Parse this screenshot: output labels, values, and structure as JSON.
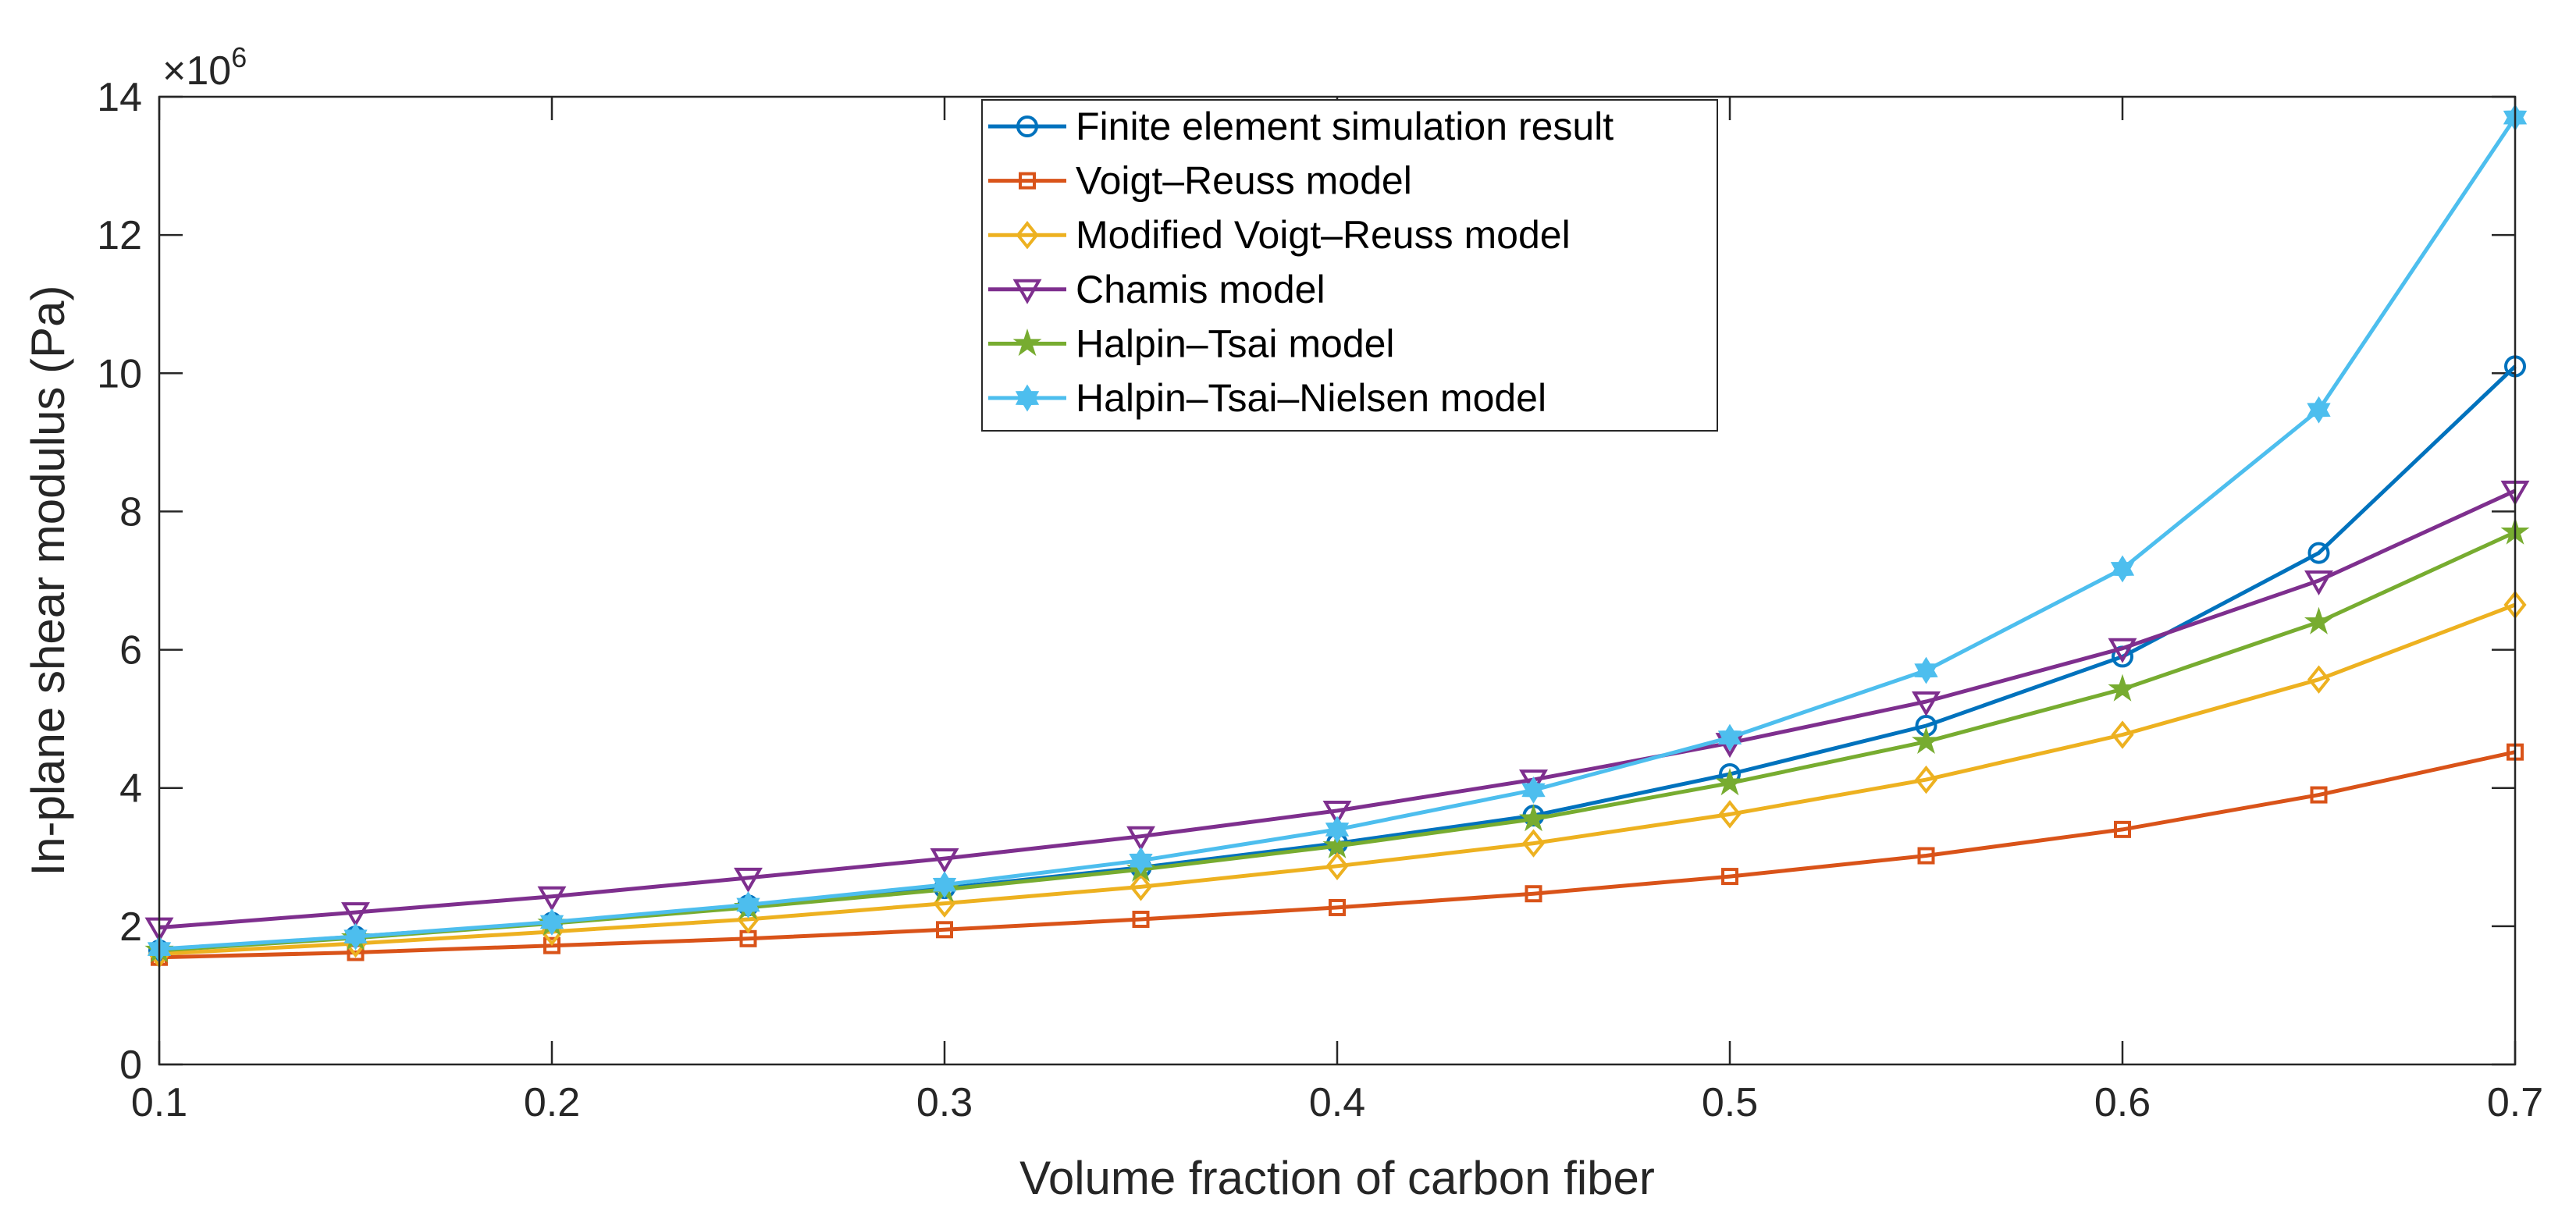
{
  "chart_data": {
    "type": "line",
    "title": "",
    "xlabel": "Volume fraction of carbon fiber",
    "ylabel": "In-plane shear modulus (Pa)",
    "y_exponent_base": "×10",
    "y_exponent_power": "6",
    "xlim": [
      0.1,
      0.7
    ],
    "ylim": [
      0,
      14
    ],
    "x_ticks": [
      "0.1",
      "0.2",
      "0.3",
      "0.4",
      "0.5",
      "0.6",
      "0.7"
    ],
    "x_tick_values": [
      0.1,
      0.2,
      0.3,
      0.4,
      0.5,
      0.6,
      0.7
    ],
    "y_ticks": [
      "0",
      "2",
      "4",
      "6",
      "8",
      "10",
      "12",
      "14"
    ],
    "y_tick_values": [
      0,
      2,
      4,
      6,
      8,
      10,
      12,
      14
    ],
    "legend_position": "top-center",
    "x": [
      0.1,
      0.15,
      0.2,
      0.25,
      0.3,
      0.35,
      0.4,
      0.45,
      0.5,
      0.55,
      0.6,
      0.65,
      0.7
    ],
    "series": [
      {
        "name": "Finite element simulation result",
        "color": "#0072BD",
        "marker": "circle",
        "values": [
          1.65,
          1.85,
          2.05,
          2.3,
          2.55,
          2.85,
          3.2,
          3.6,
          4.2,
          4.9,
          5.9,
          7.4,
          10.1
        ]
      },
      {
        "name": "Voigt–Reuss model",
        "color": "#D95319",
        "marker": "square",
        "values": [
          1.55,
          1.62,
          1.72,
          1.82,
          1.95,
          2.1,
          2.27,
          2.47,
          2.72,
          3.02,
          3.4,
          3.9,
          4.52
        ]
      },
      {
        "name": "Modified Voigt–Reuss model",
        "color": "#EDB120",
        "marker": "diamond",
        "values": [
          1.6,
          1.75,
          1.92,
          2.1,
          2.33,
          2.57,
          2.87,
          3.2,
          3.62,
          4.12,
          4.77,
          5.57,
          6.65
        ]
      },
      {
        "name": "Chamis model",
        "color": "#7E2F8E",
        "marker": "triangle-down",
        "values": [
          1.98,
          2.2,
          2.43,
          2.7,
          2.98,
          3.3,
          3.67,
          4.12,
          4.65,
          5.25,
          6.02,
          7.0,
          8.3
        ]
      },
      {
        "name": "Halpin–Tsai model",
        "color": "#77AC30",
        "marker": "star",
        "values": [
          1.65,
          1.83,
          2.04,
          2.27,
          2.53,
          2.82,
          3.16,
          3.55,
          4.07,
          4.67,
          5.43,
          6.4,
          7.7
        ]
      },
      {
        "name": "Halpin–Tsai–Nielsen model",
        "color": "#4DBEEE",
        "marker": "hexagram",
        "values": [
          1.67,
          1.85,
          2.06,
          2.31,
          2.6,
          2.95,
          3.4,
          3.97,
          4.73,
          5.7,
          7.17,
          9.47,
          13.7
        ]
      }
    ]
  }
}
